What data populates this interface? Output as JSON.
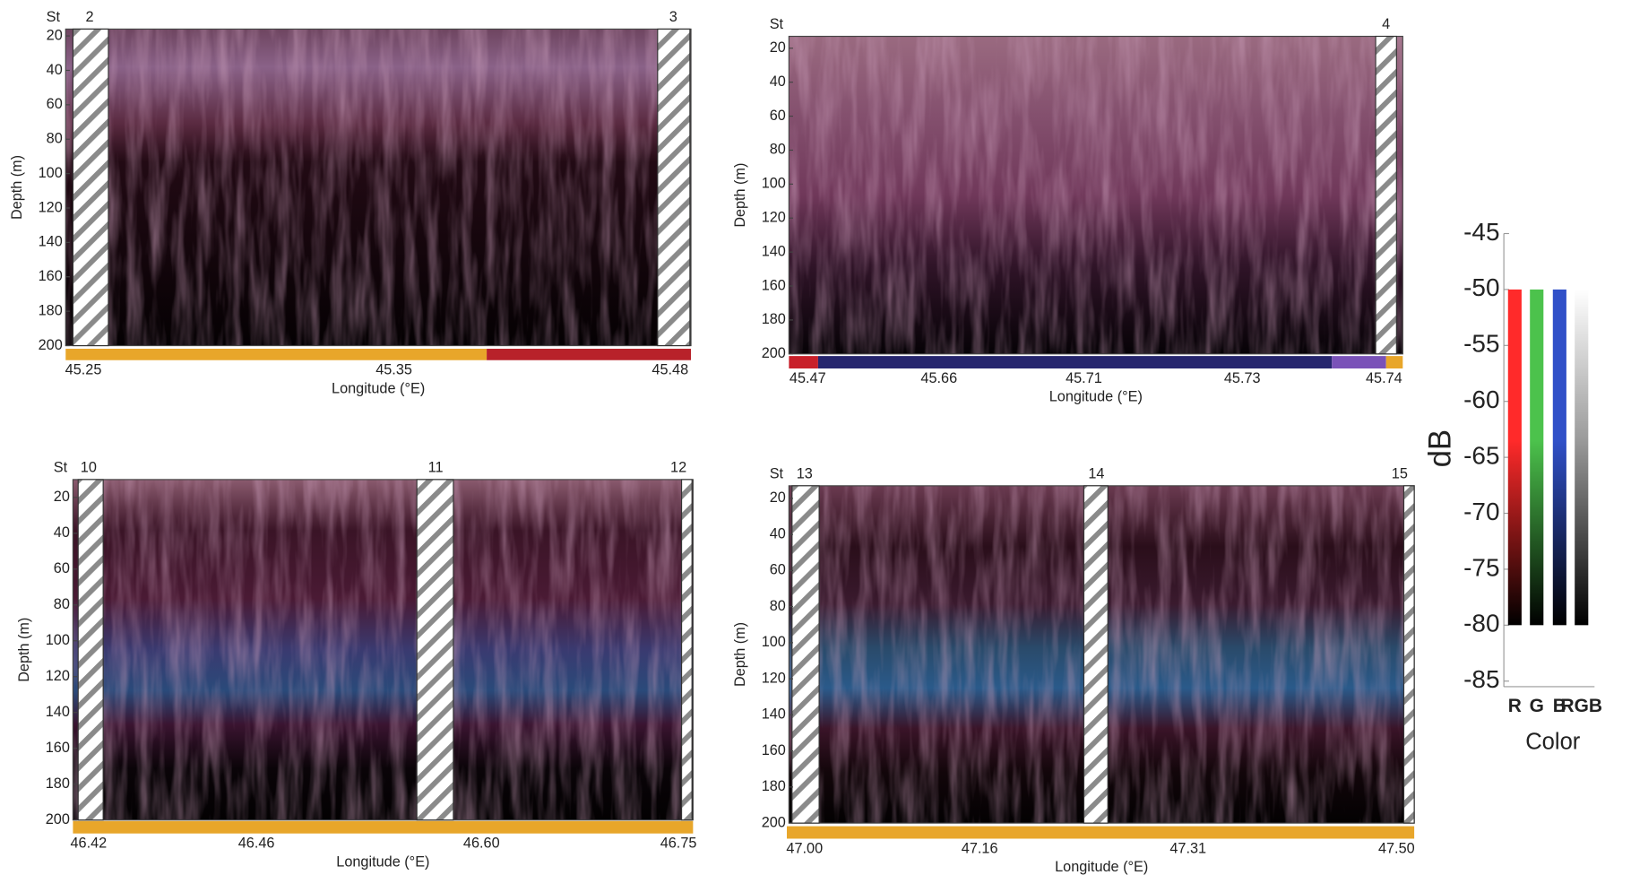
{
  "chart_data": [
    {
      "type": "echogram",
      "station_label": "St",
      "stations": [
        "2",
        "3"
      ],
      "categories": [
        "45.25",
        "45.35",
        "45.48"
      ],
      "x_label": "Longitude (°E)",
      "y_label": "Depth (m)",
      "ylim": [
        16,
        200
      ],
      "yticks": [
        20,
        40,
        60,
        80,
        100,
        120,
        140,
        160,
        180,
        200
      ]
    },
    {
      "type": "echogram",
      "station_label": "St",
      "stations": [
        "4"
      ],
      "categories": [
        "45.47",
        "45.66",
        "45.71",
        "45.73",
        "45.74"
      ],
      "x_label": "Longitude (°E)",
      "y_label": "Depth (m)",
      "ylim": [
        13,
        200
      ],
      "yticks": [
        20,
        40,
        60,
        80,
        100,
        120,
        140,
        160,
        180,
        200
      ]
    },
    {
      "type": "echogram",
      "station_label": "St",
      "stations": [
        "10",
        "11",
        "12"
      ],
      "categories": [
        "46.42",
        "46.46",
        "46.60",
        "46.75"
      ],
      "x_label": "Longitude (°E)",
      "y_label": "Depth (m)",
      "ylim": [
        10,
        200
      ],
      "yticks": [
        20,
        40,
        60,
        80,
        100,
        120,
        140,
        160,
        180,
        200
      ]
    },
    {
      "type": "echogram",
      "station_label": "St",
      "stations": [
        "13",
        "14",
        "15"
      ],
      "categories": [
        "47.00",
        "47.16",
        "47.31",
        "47.50"
      ],
      "x_label": "Longitude (°E)",
      "y_label": "Depth (m)",
      "ylim": [
        13,
        200
      ],
      "yticks": [
        20,
        40,
        60,
        80,
        100,
        120,
        140,
        160,
        180,
        200
      ]
    },
    {
      "type": "colorbar",
      "y_label": "dB",
      "x_label": "Color",
      "categories": [
        "R",
        "G",
        "B",
        "RGB"
      ],
      "colors": [
        "#ff2a2a",
        "#4cc24c",
        "#3050c8",
        "#ffffff"
      ],
      "low": [
        -80,
        -80,
        -80,
        -80
      ],
      "high": [
        -50,
        -50,
        -50,
        -50
      ],
      "ylim": [
        -85.5,
        -45
      ],
      "yticks": [
        -45,
        -50,
        -55,
        -60,
        -65,
        -70,
        -75,
        -80,
        -85
      ]
    }
  ]
}
